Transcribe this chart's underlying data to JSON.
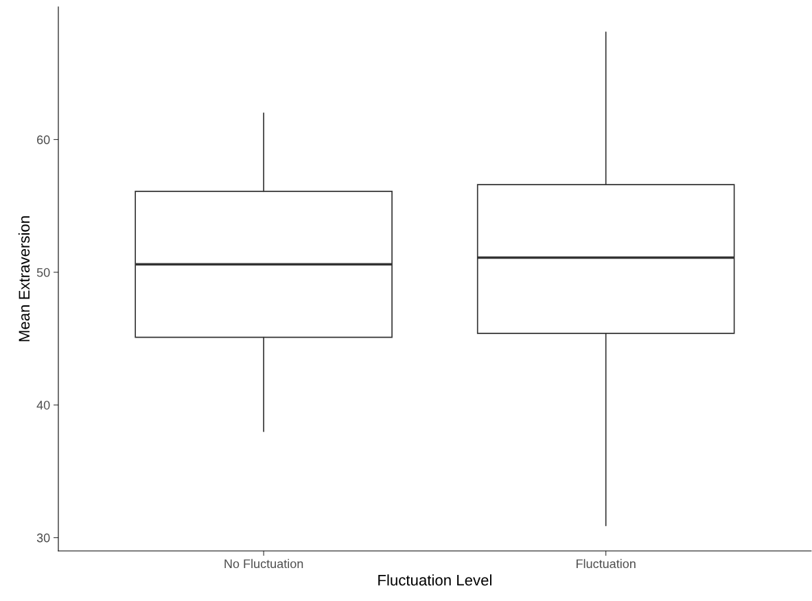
{
  "chart_data": {
    "type": "box",
    "xlabel": "Fluctuation Level",
    "ylabel": "Mean Extraversion",
    "categories": [
      "No Fluctuation",
      "Fluctuation"
    ],
    "boxes": [
      {
        "low": 38.0,
        "q1": 45.1,
        "median": 50.6,
        "q3": 56.1,
        "high": 62.0
      },
      {
        "low": 30.9,
        "q1": 45.4,
        "median": 51.1,
        "q3": 56.6,
        "high": 68.1
      }
    ],
    "ylim": [
      29,
      70
    ],
    "yticks": [
      30,
      40,
      50,
      60
    ],
    "grid": false
  }
}
